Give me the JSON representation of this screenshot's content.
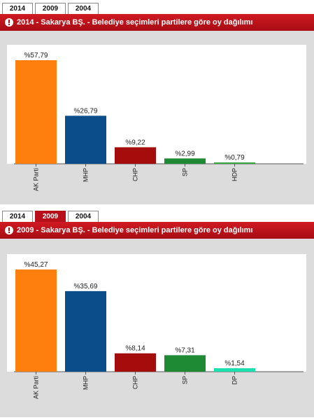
{
  "tabs": [
    "2014",
    "2009",
    "2004"
  ],
  "chart_data": [
    {
      "type": "bar",
      "title": "2014 - Sakarya BŞ. - Belediye seçimleri partilere göre oy dağılımı",
      "active_tab": "2014",
      "categories": [
        "AK Parti",
        "MHP",
        "CHP",
        "SP",
        "HDP"
      ],
      "values": [
        57.79,
        26.79,
        9.22,
        2.99,
        0.79
      ],
      "value_labels": [
        "%57,79",
        "%26,79",
        "%9,22",
        "%2,99",
        "%0,79"
      ],
      "colors": [
        "#ff7f0e",
        "#0b4c8a",
        "#a50c0c",
        "#1e8a33",
        "#3aa845"
      ],
      "ylim": [
        0,
        62
      ],
      "xlabel": "",
      "ylabel": "",
      "grid": false
    },
    {
      "type": "bar",
      "title": "2009 - Sakarya BŞ. - Belediye seçimleri partilere göre oy dağılımı",
      "active_tab": "2009",
      "categories": [
        "AK Parti",
        "MHP",
        "CHP",
        "SP",
        "DP"
      ],
      "values": [
        45.27,
        35.69,
        8.14,
        7.31,
        1.54
      ],
      "value_labels": [
        "%45,27",
        "%35,69",
        "%8,14",
        "%7,31",
        "%1,54"
      ],
      "colors": [
        "#ff7f0e",
        "#0b4c8a",
        "#a50c0c",
        "#1e8a33",
        "#1de0b0"
      ],
      "ylim": [
        0,
        48
      ],
      "xlabel": "",
      "ylabel": "",
      "grid": false
    }
  ]
}
